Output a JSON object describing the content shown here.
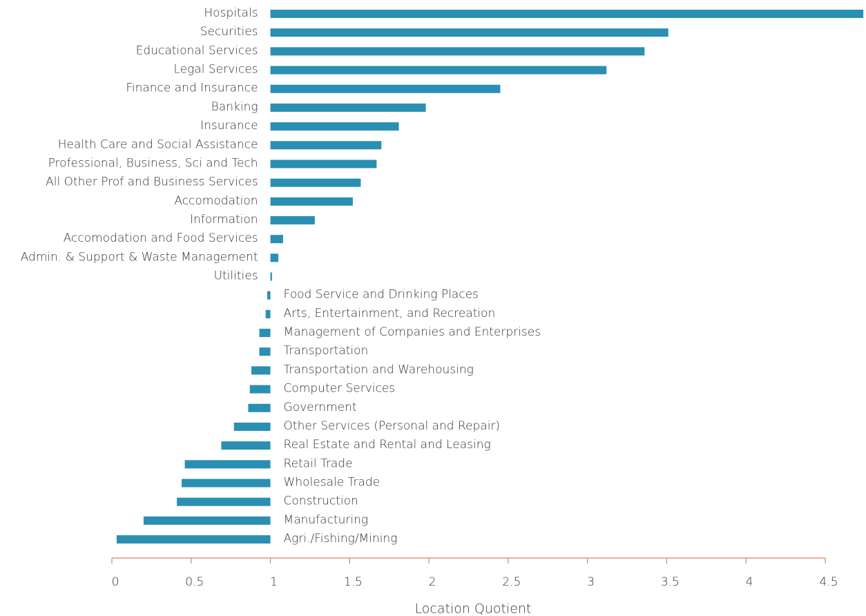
{
  "chart_data": {
    "type": "barh",
    "categories": [
      "Hospitals",
      "Securities",
      "Educational Services",
      "Legal Services",
      "Finance and Insurance",
      "Banking",
      "Insurance",
      "Health Care and Social Assistance",
      "Professional, Business, Sci and Tech",
      "All Other Prof and Business Services",
      "Accomodation",
      "Information",
      "Accomodation and Food Services",
      "Admin. & Support & Waste Management",
      "Utilities",
      "Food Service and Drinking Places",
      "Arts, Entertainment, and Recreation",
      "Management of Companies and Enterprises",
      "Transportation",
      "Transportation and Warehousing",
      "Computer Services",
      "Government",
      "Other Services (Personal and Repair)",
      "Real Estate and Rental and Leasing",
      "Retail Trade",
      "Wholesale Trade",
      "Construction",
      "Manufacturing",
      "Agri./Fishing/Mining"
    ],
    "values": [
      4.74,
      3.51,
      3.36,
      3.12,
      2.45,
      1.98,
      1.81,
      1.7,
      1.67,
      1.57,
      1.52,
      1.28,
      1.08,
      1.05,
      1.01,
      0.98,
      0.97,
      0.93,
      0.93,
      0.88,
      0.87,
      0.86,
      0.77,
      0.69,
      0.46,
      0.44,
      0.41,
      0.2,
      0.03
    ],
    "baseline": 1,
    "color": "#2a8fb3",
    "axis_color": "#d9825b",
    "xlabel": "Location Quotient",
    "xlim": [
      0,
      4.5
    ],
    "xticks": [
      0,
      0.5,
      1,
      1.5,
      2,
      2.5,
      3,
      3.5,
      4,
      4.5
    ]
  }
}
